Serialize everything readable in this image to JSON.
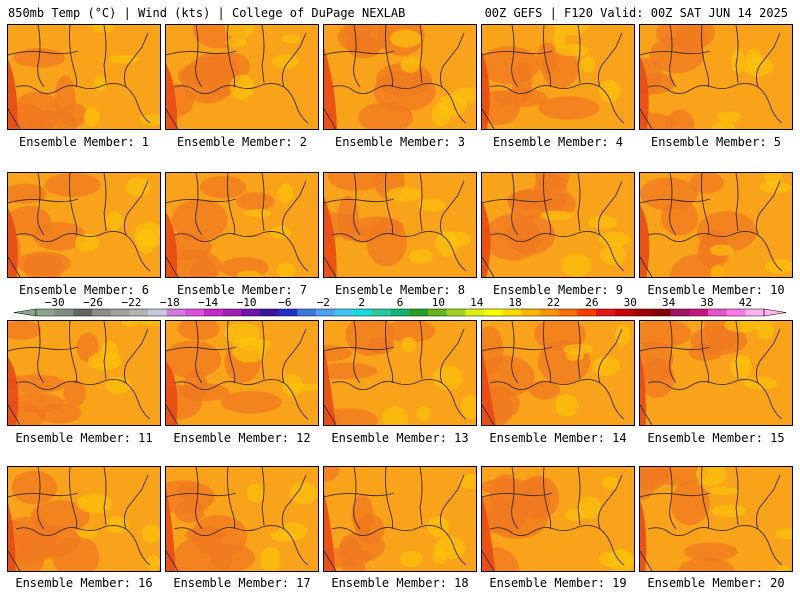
{
  "header": {
    "title_left": "850mb Temp (°C) | Wind (kts) | College of DuPage NEXLAB",
    "title_right": "00Z GEFS | F120 Valid: 00Z SAT JUN 14 2025"
  },
  "panels": [
    {
      "label": "Ensemble Member: 1"
    },
    {
      "label": "Ensemble Member: 2"
    },
    {
      "label": "Ensemble Member: 3"
    },
    {
      "label": "Ensemble Member: 4"
    },
    {
      "label": "Ensemble Member: 5"
    },
    {
      "label": "Ensemble Member: 6"
    },
    {
      "label": "Ensemble Member: 7"
    },
    {
      "label": "Ensemble Member: 8"
    },
    {
      "label": "Ensemble Member: 9"
    },
    {
      "label": "Ensemble Member: 10"
    },
    {
      "label": "Ensemble Member: 11"
    },
    {
      "label": "Ensemble Member: 12"
    },
    {
      "label": "Ensemble Member: 13"
    },
    {
      "label": "Ensemble Member: 14"
    },
    {
      "label": "Ensemble Member: 15"
    },
    {
      "label": "Ensemble Member: 16"
    },
    {
      "label": "Ensemble Member: 17"
    },
    {
      "label": "Ensemble Member: 18"
    },
    {
      "label": "Ensemble Member: 19"
    },
    {
      "label": "Ensemble Member: 20"
    }
  ],
  "colorbar": {
    "ticks": [
      "−30",
      "−26",
      "−22",
      "−18",
      "−14",
      "−10",
      "−6",
      "−2",
      "2",
      "6",
      "10",
      "14",
      "18",
      "22",
      "26",
      "30",
      "34",
      "38",
      "42"
    ],
    "colors": [
      "#8aa58a",
      "#7f8f7f",
      "#646464",
      "#8c8c8c",
      "#a0a0a0",
      "#b4b4b4",
      "#c8c8dc",
      "#d27adc",
      "#dc50dc",
      "#c828c8",
      "#a01eb4",
      "#6e14aa",
      "#3c14a0",
      "#1e32c8",
      "#3c78dc",
      "#50a0f0",
      "#3cc8f0",
      "#14dcdc",
      "#28c8a0",
      "#14b478",
      "#28a028",
      "#64b41e",
      "#a0d21e",
      "#dcf014",
      "#fafa00",
      "#ffdc00",
      "#ffb400",
      "#ff9600",
      "#ff6e00",
      "#ff3c00",
      "#e61414",
      "#c80000",
      "#a00000",
      "#820000",
      "#a01464",
      "#c8147f",
      "#e650c8",
      "#ff78e6",
      "#ffb4f0"
    ]
  },
  "map_colors": {
    "base": "#f9a31a",
    "warm": "#f07820",
    "hot": "#e84a14",
    "cool": "#fcc20c",
    "coast": "#3a2a18"
  }
}
